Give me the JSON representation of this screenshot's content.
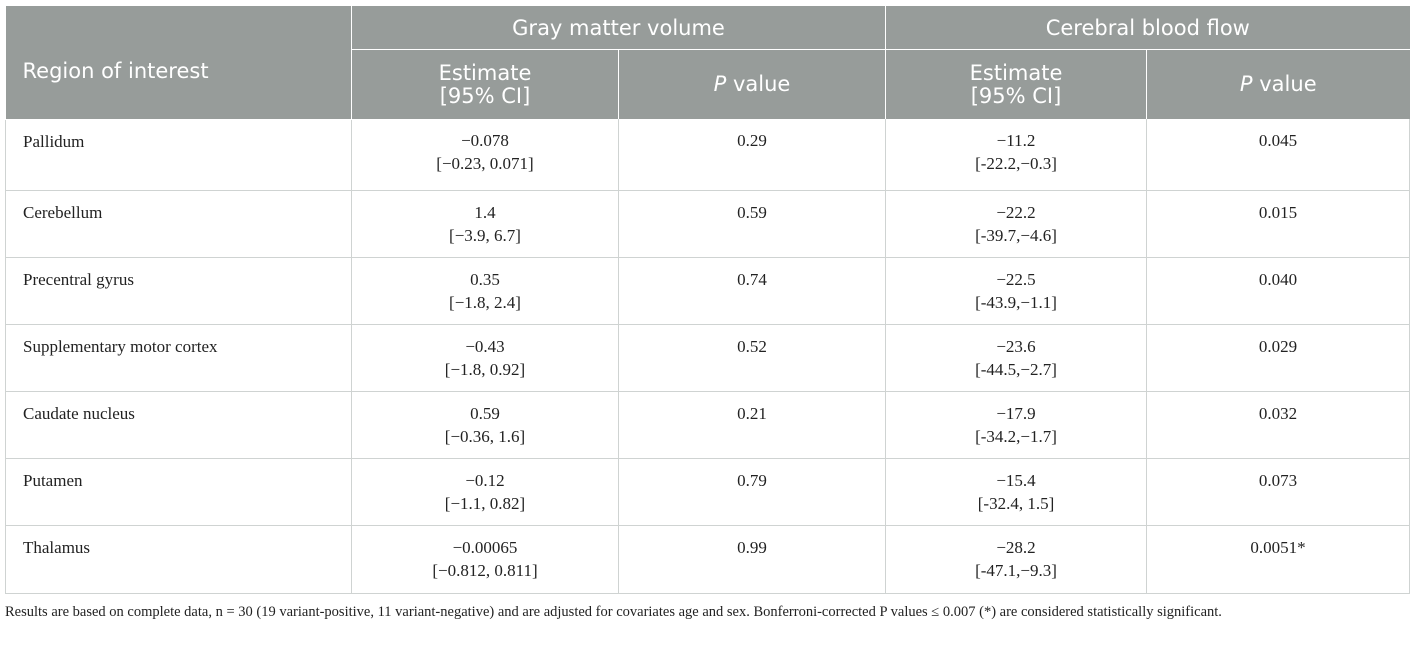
{
  "header": {
    "region_label": "Region of interest",
    "group1": "Gray matter volume",
    "group2": "Cerebral blood flow",
    "estimate_line1": "Estimate",
    "estimate_line2": "[95% CI]",
    "p_italic": "P",
    "p_rest": " value"
  },
  "rows": [
    {
      "region": "Pallidum",
      "gmv_est": "−0.078",
      "gmv_ci": "[−0.23, 0.071]",
      "gmv_p": "0.29",
      "cbf_est": "−11.2",
      "cbf_ci": "[-22.2,−0.3]",
      "cbf_p": "0.045"
    },
    {
      "region": "Cerebellum",
      "gmv_est": "1.4",
      "gmv_ci": "[−3.9, 6.7]",
      "gmv_p": "0.59",
      "cbf_est": "−22.2",
      "cbf_ci": "[-39.7,−4.6]",
      "cbf_p": "0.015"
    },
    {
      "region": "Precentral gyrus",
      "gmv_est": "0.35",
      "gmv_ci": "[−1.8, 2.4]",
      "gmv_p": "0.74",
      "cbf_est": "−22.5",
      "cbf_ci": "[-43.9,−1.1]",
      "cbf_p": "0.040"
    },
    {
      "region": "Supplementary motor cortex",
      "gmv_est": "−0.43",
      "gmv_ci": "[−1.8, 0.92]",
      "gmv_p": "0.52",
      "cbf_est": "−23.6",
      "cbf_ci": "[-44.5,−2.7]",
      "cbf_p": "0.029"
    },
    {
      "region": "Caudate nucleus",
      "gmv_est": "0.59",
      "gmv_ci": "[−0.36, 1.6]",
      "gmv_p": "0.21",
      "cbf_est": "−17.9",
      "cbf_ci": "[-34.2,−1.7]",
      "cbf_p": "0.032"
    },
    {
      "region": "Putamen",
      "gmv_est": "−0.12",
      "gmv_ci": "[−1.1, 0.82]",
      "gmv_p": "0.79",
      "cbf_est": "−15.4",
      "cbf_ci": "[-32.4, 1.5]",
      "cbf_p": "0.073"
    },
    {
      "region": "Thalamus",
      "gmv_est": "−0.00065",
      "gmv_ci": "[−0.812, 0.811]",
      "gmv_p": "0.99",
      "cbf_est": "−28.2",
      "cbf_ci": "[-47.1,−9.3]",
      "cbf_p": "0.0051*"
    }
  ],
  "footnote": "Results are based on complete data, n = 30 (19 variant-positive, 11 variant-negative) and are adjusted for covariates age and sex. Bonferroni-corrected P values ≤ 0.007 (*) are considered statistically significant."
}
